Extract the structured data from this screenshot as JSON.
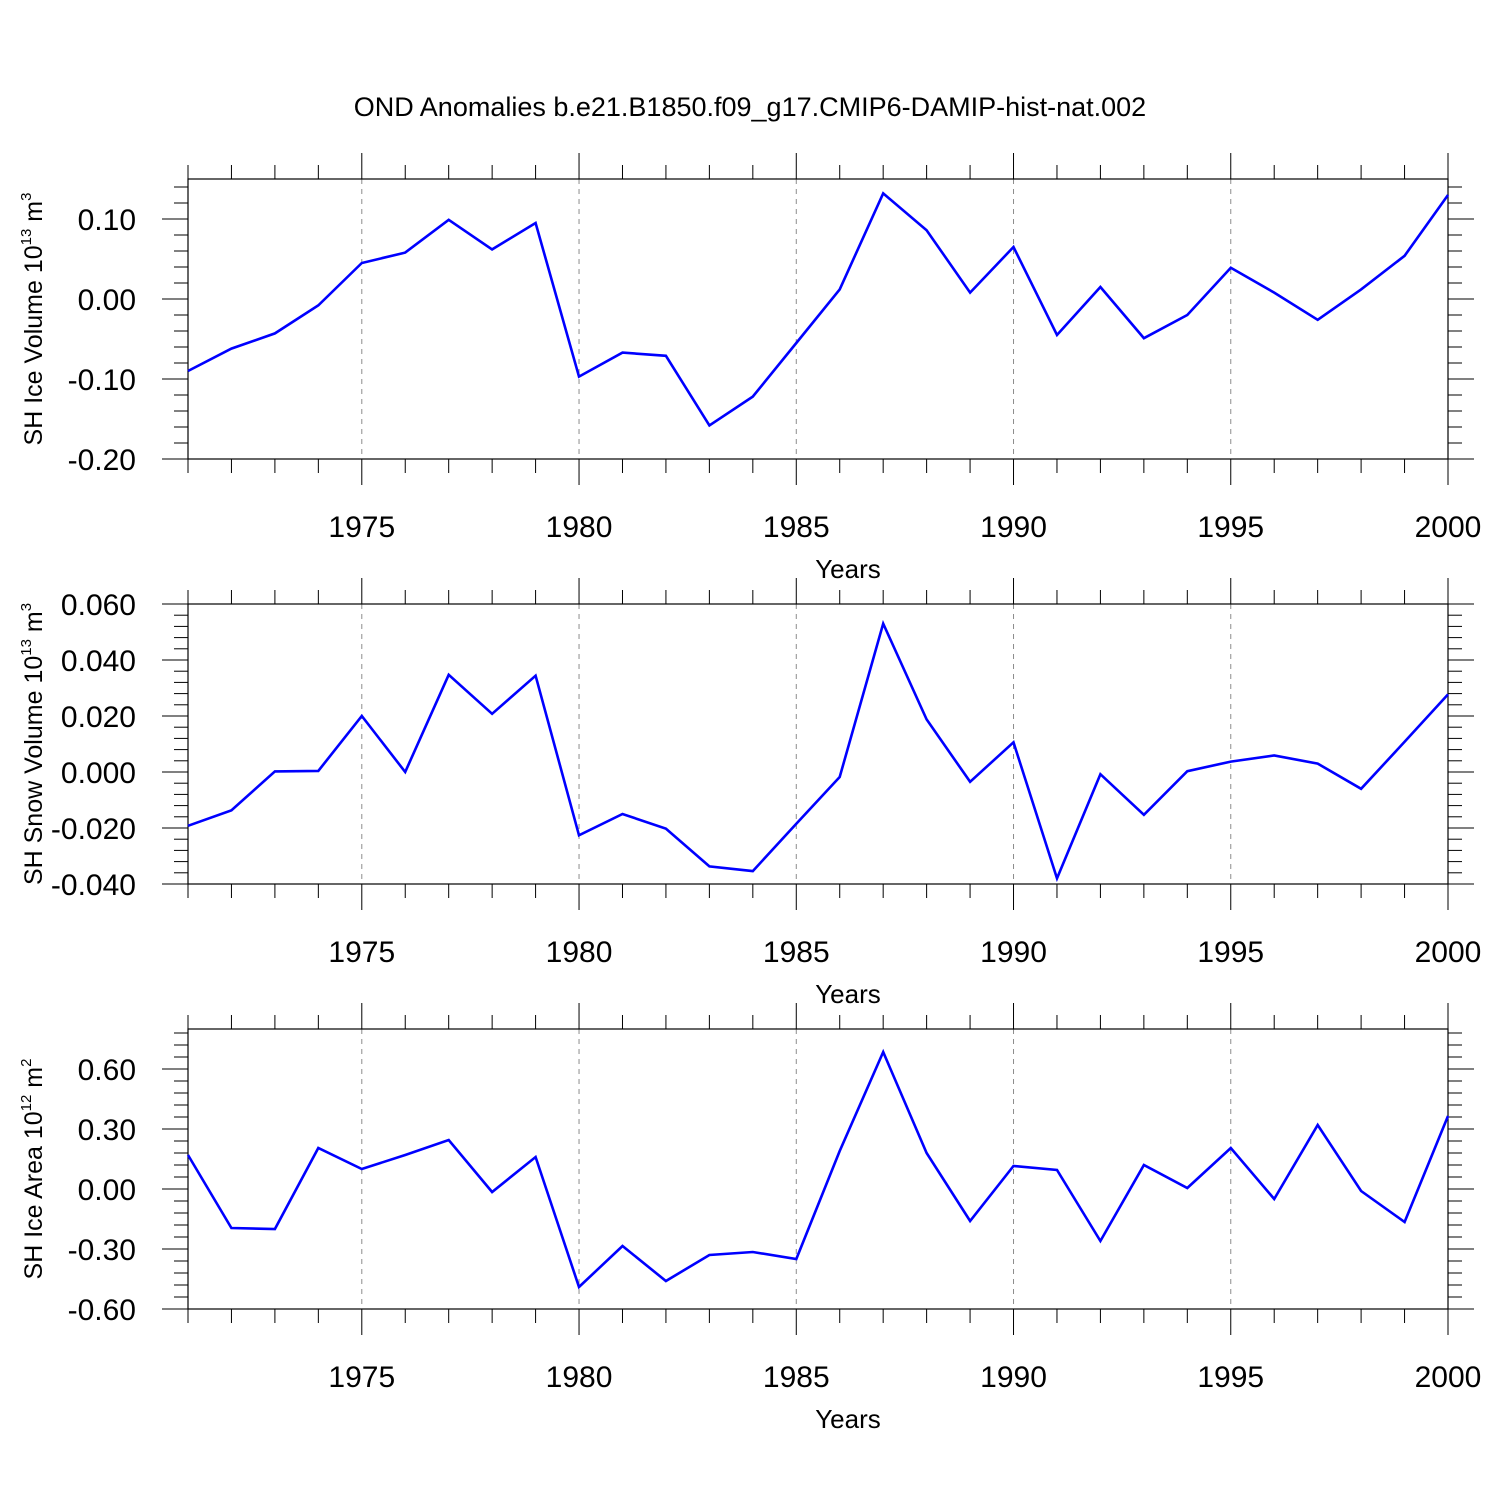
{
  "title": "OND Anomalies b.e21.B1850.f09_g17.CMIP6-DAMIP-hist-nat.002",
  "colors": {
    "line": "#0000ff",
    "axis": "#000000",
    "grid": "#8c8c8c"
  },
  "chart_data": [
    {
      "type": "line",
      "ylabel": {
        "main": "SH Ice Volume 10",
        "sup": "13",
        "unit": " m",
        "unitsup": "3"
      },
      "xlabel": "Years",
      "xlim": [
        1971,
        2000
      ],
      "ylim": [
        -0.2,
        0.15
      ],
      "yticks": [
        -0.2,
        -0.1,
        0.0,
        0.1
      ],
      "ytick_labels": [
        "-0.20",
        "-0.10",
        "0.00",
        "0.10"
      ],
      "xticks": [
        1975,
        1980,
        1985,
        1990,
        1995,
        2000
      ],
      "xtick_labels": [
        "1975",
        "1980",
        "1985",
        "1990",
        "1995",
        "2000"
      ],
      "x": [
        1971,
        1972,
        1973,
        1974,
        1975,
        1976,
        1977,
        1978,
        1979,
        1980,
        1981,
        1982,
        1983,
        1984,
        1985,
        1986,
        1987,
        1988,
        1989,
        1990,
        1991,
        1992,
        1993,
        1994,
        1995,
        1996,
        1997,
        1998,
        1999,
        2000
      ],
      "values": [
        -0.09,
        -0.062,
        -0.043,
        -0.008,
        0.045,
        0.058,
        0.099,
        0.062,
        0.095,
        -0.097,
        -0.067,
        -0.071,
        -0.158,
        -0.122,
        -0.055,
        0.012,
        0.132,
        0.086,
        0.008,
        0.065,
        -0.045,
        0.015,
        -0.049,
        -0.02,
        0.039,
        0.008,
        -0.026,
        0.012,
        0.054,
        0.13
      ]
    },
    {
      "type": "line",
      "ylabel": {
        "main": "SH Snow Volume 10",
        "sup": "13",
        "unit": " m",
        "unitsup": "3"
      },
      "xlabel": "Years",
      "xlim": [
        1971,
        2000
      ],
      "ylim": [
        -0.04,
        0.06
      ],
      "yticks": [
        -0.04,
        -0.02,
        0.0,
        0.02,
        0.04,
        0.06
      ],
      "ytick_labels": [
        "-0.040",
        "-0.020",
        "0.000",
        "0.020",
        "0.040",
        "0.060"
      ],
      "xticks": [
        1975,
        1980,
        1985,
        1990,
        1995,
        2000
      ],
      "xtick_labels": [
        "1975",
        "1980",
        "1985",
        "1990",
        "1995",
        "2000"
      ],
      "x": [
        1971,
        1972,
        1973,
        1974,
        1975,
        1976,
        1977,
        1978,
        1979,
        1980,
        1981,
        1982,
        1983,
        1984,
        1985,
        1986,
        1987,
        1988,
        1989,
        1990,
        1991,
        1992,
        1993,
        1994,
        1995,
        1996,
        1997,
        1998,
        1999,
        2000
      ],
      "values": [
        -0.0192,
        -0.0137,
        0.0002,
        0.0004,
        0.02,
        0.0,
        0.0347,
        0.0208,
        0.0344,
        -0.0226,
        -0.015,
        -0.0202,
        -0.0337,
        -0.0354,
        -0.0185,
        -0.0018,
        0.053,
        0.0188,
        -0.0035,
        0.0106,
        -0.038,
        -0.0008,
        -0.0153,
        0.0003,
        0.0037,
        0.0059,
        0.003,
        -0.006,
        0.0108,
        0.0277
      ]
    },
    {
      "type": "line",
      "ylabel": {
        "main": "SH Ice Area 10",
        "sup": "12",
        "unit": " m",
        "unitsup": "2"
      },
      "xlabel": "Years",
      "xlim": [
        1971,
        2000
      ],
      "ylim": [
        -0.6,
        0.8
      ],
      "yticks": [
        -0.6,
        -0.3,
        0.0,
        0.3,
        0.6
      ],
      "ytick_labels": [
        "-0.60",
        "-0.30",
        "0.00",
        "0.30",
        "0.60"
      ],
      "xticks": [
        1975,
        1980,
        1985,
        1990,
        1995,
        2000
      ],
      "xtick_labels": [
        "1975",
        "1980",
        "1985",
        "1990",
        "1995",
        "2000"
      ],
      "x": [
        1971,
        1972,
        1973,
        1974,
        1975,
        1976,
        1977,
        1978,
        1979,
        1980,
        1981,
        1982,
        1983,
        1984,
        1985,
        1986,
        1987,
        1988,
        1989,
        1990,
        1991,
        1992,
        1993,
        1994,
        1995,
        1996,
        1997,
        1998,
        1999,
        2000
      ],
      "values": [
        0.17,
        -0.195,
        -0.2,
        0.205,
        0.1,
        0.17,
        0.245,
        -0.015,
        0.16,
        -0.49,
        -0.285,
        -0.46,
        -0.33,
        -0.315,
        -0.35,
        0.19,
        0.685,
        0.18,
        -0.16,
        0.115,
        0.095,
        -0.26,
        0.12,
        0.005,
        0.205,
        -0.05,
        0.32,
        -0.01,
        -0.165,
        0.365
      ]
    }
  ]
}
